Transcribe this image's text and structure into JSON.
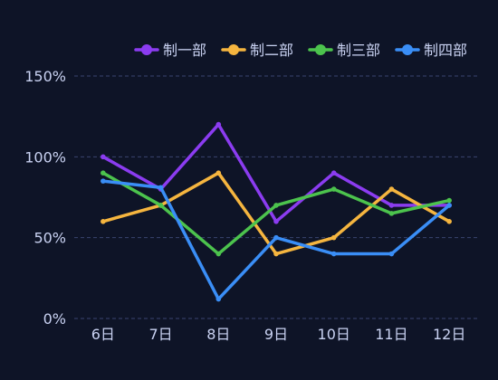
{
  "chart_data": {
    "type": "line",
    "categories": [
      "6日",
      "7日",
      "8日",
      "9日",
      "10日",
      "11日",
      "12日"
    ],
    "series": [
      {
        "name": "制一部",
        "color": "#8b3cf0",
        "values": [
          100,
          80,
          120,
          60,
          90,
          70,
          70
        ]
      },
      {
        "name": "制二部",
        "color": "#f5b53f",
        "values": [
          60,
          70,
          90,
          40,
          50,
          80,
          60
        ]
      },
      {
        "name": "制三部",
        "color": "#4cc34d",
        "values": [
          90,
          70,
          40,
          70,
          80,
          65,
          73
        ]
      },
      {
        "name": "制四部",
        "color": "#3a8ef6",
        "values": [
          85,
          81,
          12,
          50,
          40,
          40,
          70
        ]
      }
    ],
    "yticks": [
      "0%",
      "50%",
      "100%",
      "150%"
    ],
    "ylim": [
      0,
      150
    ],
    "grid": true,
    "legend_position": "top-right",
    "colors": {
      "background": "#0e1427",
      "grid": "#3a4470",
      "axis_text": "#c9d2f2"
    }
  }
}
